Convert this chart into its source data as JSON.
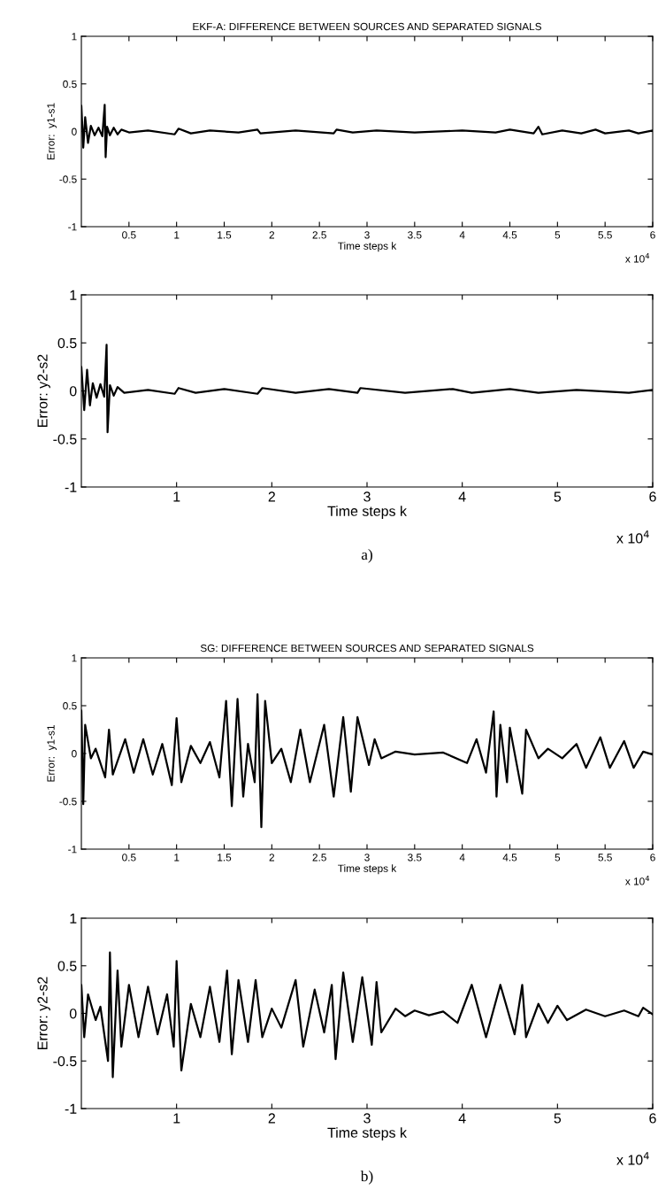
{
  "chart_data": [
    {
      "type": "line",
      "title": "EKF-A: DIFFERENCE BETWEEN SOURCES AND SEPARATED SIGNALS",
      "xlabel": "Time steps k",
      "ylabel": "Error:  y1-s1",
      "annotations": [
        "x 10$^{4}$"
      ],
      "xlim": [
        0,
        6
      ],
      "ylim": [
        -1,
        1
      ],
      "yticks": [
        -1,
        -0.5,
        0,
        0.5,
        1
      ],
      "xticks": [
        0.5,
        1,
        1.5,
        2,
        2.5,
        3,
        3.5,
        4,
        4.5,
        5,
        5.5,
        6
      ],
      "grid": false,
      "series": [
        {
          "color": "#000000",
          "x": [
            0,
            0.02,
            0.04,
            0.07,
            0.1,
            0.14,
            0.18,
            0.22,
            0.245,
            0.255,
            0.27,
            0.3,
            0.34,
            0.38,
            0.42,
            0.5,
            0.7,
            0.98,
            1.02,
            1.15,
            1.35,
            1.65,
            1.85,
            1.88,
            2.25,
            2.65,
            2.68,
            2.85,
            3.1,
            3.5,
            4.0,
            4.35,
            4.5,
            4.75,
            4.8,
            4.84,
            5.05,
            5.25,
            5.4,
            5.5,
            5.75,
            5.85,
            6.0
          ],
          "values": [
            0.27,
            -0.17,
            0.15,
            -0.12,
            0.06,
            -0.04,
            0.04,
            -0.05,
            0.28,
            -0.27,
            0.05,
            -0.04,
            0.04,
            -0.03,
            0.02,
            -0.01,
            0.01,
            -0.03,
            0.03,
            -0.02,
            0.01,
            -0.01,
            0.02,
            -0.02,
            0.01,
            -0.02,
            0.02,
            -0.01,
            0.01,
            -0.01,
            0.01,
            -0.01,
            0.02,
            -0.02,
            0.05,
            -0.03,
            0.01,
            -0.02,
            0.02,
            -0.02,
            0.01,
            -0.02,
            0.01
          ]
        }
      ]
    },
    {
      "type": "line",
      "xlabel": "Time steps k",
      "ylabel": "Error: y2-s2",
      "annotations": [
        "x 10$^{4}$",
        "a)"
      ],
      "xlim": [
        0,
        6
      ],
      "ylim": [
        -1,
        1
      ],
      "yticks": [
        -1,
        -0.5,
        0,
        0.5,
        1
      ],
      "xticks": [
        1,
        2,
        3,
        4,
        5,
        6
      ],
      "grid": false,
      "series": [
        {
          "color": "#000000",
          "x": [
            0,
            0.03,
            0.06,
            0.09,
            0.12,
            0.16,
            0.2,
            0.24,
            0.265,
            0.275,
            0.3,
            0.34,
            0.38,
            0.45,
            0.7,
            0.98,
            1.02,
            1.2,
            1.5,
            1.85,
            1.9,
            2.25,
            2.6,
            2.9,
            2.93,
            3.4,
            3.9,
            4.1,
            4.5,
            4.8,
            5.2,
            5.75,
            6.0
          ],
          "values": [
            0.25,
            -0.2,
            0.22,
            -0.15,
            0.08,
            -0.07,
            0.07,
            -0.06,
            0.48,
            -0.43,
            0.06,
            -0.05,
            0.04,
            -0.02,
            0.01,
            -0.03,
            0.03,
            -0.02,
            0.02,
            -0.03,
            0.03,
            -0.02,
            0.02,
            -0.02,
            0.03,
            -0.02,
            0.02,
            -0.02,
            0.02,
            -0.02,
            0.01,
            -0.02,
            0.01
          ]
        }
      ]
    },
    {
      "type": "line",
      "title": "SG: DIFFERENCE BETWEEN SOURCES AND SEPARATED SIGNALS",
      "xlabel": "Time steps k",
      "ylabel": "Error:  y1-s1",
      "annotations": [
        "x 10$^{4}$"
      ],
      "xlim": [
        0,
        6
      ],
      "ylim": [
        -1,
        1
      ],
      "yticks": [
        -1,
        -0.5,
        0,
        0.5,
        1
      ],
      "xticks": [
        0.5,
        1,
        1.5,
        2,
        2.5,
        3,
        3.5,
        4,
        4.5,
        5,
        5.5,
        6
      ],
      "grid": false,
      "series": [
        {
          "color": "#000000",
          "x": [
            0,
            0.02,
            0.04,
            0.1,
            0.15,
            0.25,
            0.29,
            0.33,
            0.46,
            0.55,
            0.65,
            0.75,
            0.85,
            0.95,
            1.0,
            1.05,
            1.15,
            1.25,
            1.35,
            1.45,
            1.52,
            1.58,
            1.64,
            1.7,
            1.75,
            1.82,
            1.85,
            1.89,
            1.93,
            2.0,
            2.1,
            2.2,
            2.3,
            2.4,
            2.55,
            2.65,
            2.75,
            2.83,
            2.9,
            3.02,
            3.08,
            3.15,
            3.3,
            3.5,
            3.8,
            4.05,
            4.15,
            4.25,
            4.33,
            4.36,
            4.4,
            4.47,
            4.5,
            4.63,
            4.67,
            4.8,
            4.9,
            5.05,
            5.2,
            5.3,
            5.45,
            5.55,
            5.7,
            5.8,
            5.9,
            6.0
          ],
          "values": [
            0.45,
            -0.53,
            0.3,
            -0.05,
            0.05,
            -0.25,
            0.25,
            -0.22,
            0.15,
            -0.2,
            0.15,
            -0.22,
            0.1,
            -0.33,
            0.37,
            -0.3,
            0.08,
            -0.1,
            0.12,
            -0.25,
            0.55,
            -0.55,
            0.57,
            -0.45,
            0.1,
            -0.3,
            0.62,
            -0.77,
            0.55,
            -0.1,
            0.05,
            -0.3,
            0.25,
            -0.3,
            0.3,
            -0.45,
            0.38,
            -0.4,
            0.38,
            -0.12,
            0.15,
            -0.05,
            0.02,
            -0.01,
            0.01,
            -0.1,
            0.15,
            -0.2,
            0.44,
            -0.45,
            0.3,
            -0.3,
            0.27,
            -0.42,
            0.25,
            -0.05,
            0.05,
            -0.05,
            0.1,
            -0.15,
            0.17,
            -0.15,
            0.13,
            -0.15,
            0.02,
            -0.01
          ]
        }
      ]
    },
    {
      "type": "line",
      "xlabel": "Time steps k",
      "ylabel": "Error: y2-s2",
      "annotations": [
        "x 10$^{4}$",
        "b)"
      ],
      "xlim": [
        0,
        6
      ],
      "ylim": [
        -1,
        1
      ],
      "yticks": [
        -1,
        -0.5,
        0,
        0.5,
        1
      ],
      "xticks": [
        1,
        2,
        3,
        4,
        5,
        6
      ],
      "grid": false,
      "series": [
        {
          "color": "#000000",
          "x": [
            0,
            0.03,
            0.07,
            0.15,
            0.2,
            0.28,
            0.3,
            0.33,
            0.38,
            0.42,
            0.5,
            0.6,
            0.7,
            0.8,
            0.9,
            0.97,
            1.0,
            1.05,
            1.15,
            1.25,
            1.35,
            1.45,
            1.53,
            1.58,
            1.65,
            1.75,
            1.83,
            1.9,
            2.0,
            2.1,
            2.25,
            2.33,
            2.45,
            2.55,
            2.63,
            2.67,
            2.75,
            2.85,
            2.95,
            3.05,
            3.1,
            3.15,
            3.3,
            3.4,
            3.5,
            3.65,
            3.8,
            3.95,
            4.1,
            4.25,
            4.4,
            4.55,
            4.63,
            4.67,
            4.8,
            4.9,
            5.0,
            5.1,
            5.3,
            5.5,
            5.7,
            5.85,
            5.9,
            6.0
          ],
          "values": [
            0.3,
            -0.25,
            0.2,
            -0.07,
            0.07,
            -0.5,
            0.64,
            -0.67,
            0.45,
            -0.35,
            0.3,
            -0.25,
            0.28,
            -0.22,
            0.2,
            -0.35,
            0.55,
            -0.6,
            0.1,
            -0.25,
            0.28,
            -0.3,
            0.45,
            -0.43,
            0.35,
            -0.3,
            0.35,
            -0.25,
            0.05,
            -0.15,
            0.35,
            -0.35,
            0.25,
            -0.2,
            0.3,
            -0.48,
            0.43,
            -0.3,
            0.38,
            -0.33,
            0.33,
            -0.2,
            0.05,
            -0.03,
            0.03,
            -0.02,
            0.02,
            -0.1,
            0.3,
            -0.25,
            0.3,
            -0.22,
            0.3,
            -0.25,
            0.1,
            -0.1,
            0.08,
            -0.07,
            0.04,
            -0.03,
            0.03,
            -0.03,
            0.06,
            -0.01
          ]
        }
      ]
    }
  ]
}
